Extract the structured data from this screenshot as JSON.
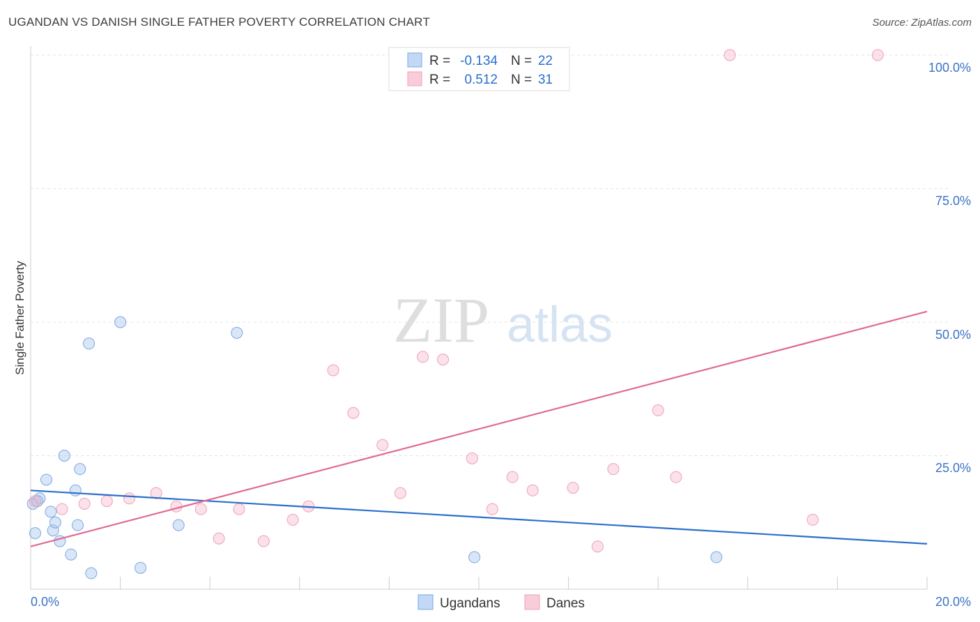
{
  "title": "UGANDAN VS DANISH SINGLE FATHER POVERTY CORRELATION CHART",
  "source": "Source: ZipAtlas.com",
  "watermark": {
    "zip": "ZIP",
    "atlas": "atlas"
  },
  "chart_data": {
    "type": "scatter",
    "title": "UGANDAN VS DANISH SINGLE FATHER POVERTY CORRELATION CHART",
    "xlabel": "",
    "ylabel": "Single Father Poverty",
    "xlim": [
      0,
      20
    ],
    "ylim": [
      0,
      100
    ],
    "x_tick_labels": {
      "min": "0.0%",
      "max": "20.0%"
    },
    "y_ticks": [
      {
        "value": 25,
        "label": "25.0%"
      },
      {
        "value": 50,
        "label": "50.0%"
      },
      {
        "value": 75,
        "label": "75.0%"
      },
      {
        "value": 100,
        "label": "100.0%"
      }
    ],
    "grid": true,
    "legend": {
      "stats": [
        {
          "r_label": "R =",
          "r_value": "-0.134",
          "n_label": "N =",
          "n_value": "22"
        },
        {
          "r_label": "R =",
          "r_value": "0.512",
          "n_label": "N =",
          "n_value": "31"
        }
      ],
      "placement": "top-center"
    },
    "series": [
      {
        "name": "Ugandans",
        "color": "#7aa8e0",
        "line_color": "#2a6fcb",
        "trend": {
          "x": [
            0,
            20
          ],
          "y": [
            18.5,
            8.5
          ]
        },
        "points": [
          [
            0.05,
            16.0
          ],
          [
            0.2,
            17.0
          ],
          [
            0.35,
            20.5
          ],
          [
            0.45,
            14.5
          ],
          [
            0.5,
            11.0
          ],
          [
            0.55,
            12.5
          ],
          [
            0.65,
            9.0
          ],
          [
            0.75,
            25.0
          ],
          [
            0.9,
            6.5
          ],
          [
            1.0,
            18.5
          ],
          [
            1.05,
            12.0
          ],
          [
            1.1,
            22.5
          ],
          [
            1.3,
            46.0
          ],
          [
            1.35,
            3.0
          ],
          [
            2.0,
            50.0
          ],
          [
            2.45,
            4.0
          ],
          [
            3.3,
            12.0
          ],
          [
            4.6,
            48.0
          ],
          [
            9.9,
            6.0
          ],
          [
            15.3,
            6.0
          ],
          [
            0.1,
            10.5
          ],
          [
            0.15,
            16.5
          ]
        ]
      },
      {
        "name": "Danes",
        "color": "#f0a0b8",
        "line_color": "#e06a92",
        "trend": {
          "x": [
            0,
            20
          ],
          "y": [
            8.0,
            52.0
          ]
        },
        "points": [
          [
            0.1,
            16.5
          ],
          [
            0.7,
            15.0
          ],
          [
            1.2,
            16.0
          ],
          [
            1.7,
            16.5
          ],
          [
            2.2,
            17.0
          ],
          [
            2.8,
            18.0
          ],
          [
            3.25,
            15.5
          ],
          [
            3.8,
            15.0
          ],
          [
            4.2,
            9.5
          ],
          [
            4.65,
            15.0
          ],
          [
            5.2,
            9.0
          ],
          [
            5.85,
            13.0
          ],
          [
            6.2,
            15.5
          ],
          [
            6.75,
            41.0
          ],
          [
            7.2,
            33.0
          ],
          [
            7.85,
            27.0
          ],
          [
            8.25,
            18.0
          ],
          [
            8.75,
            43.5
          ],
          [
            9.2,
            43.0
          ],
          [
            9.85,
            24.5
          ],
          [
            10.3,
            15.0
          ],
          [
            10.75,
            21.0
          ],
          [
            11.2,
            18.5
          ],
          [
            12.1,
            19.0
          ],
          [
            12.65,
            8.0
          ],
          [
            13.0,
            22.5
          ],
          [
            14.0,
            33.5
          ],
          [
            14.4,
            21.0
          ],
          [
            15.6,
            100.0
          ],
          [
            17.45,
            13.0
          ],
          [
            18.9,
            100.0
          ]
        ]
      }
    ]
  }
}
